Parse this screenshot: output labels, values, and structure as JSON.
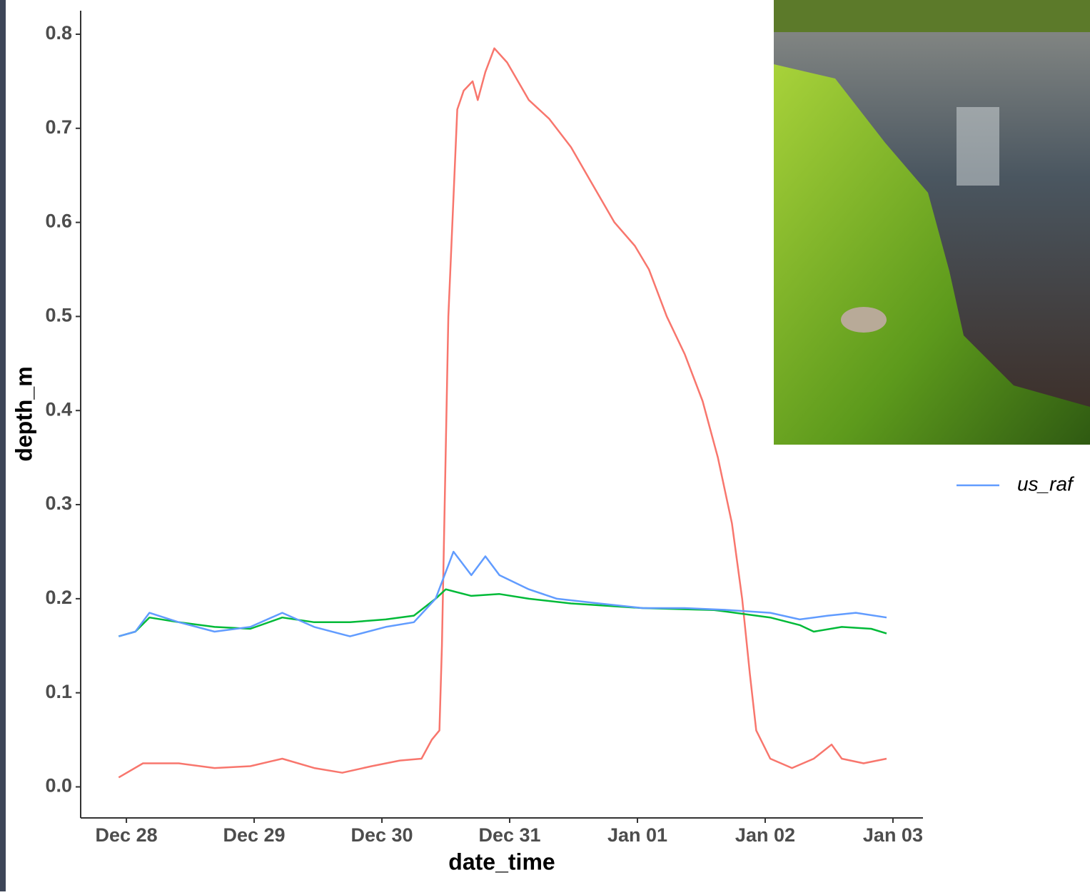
{
  "chart_data": {
    "type": "line",
    "x_label": "date_time",
    "y_label": "depth_m",
    "xlim": [
      -0.358,
      6.235
    ],
    "ylim": [
      -0.033,
      0.825
    ],
    "xticks": [
      {
        "value": 0,
        "label": "Dec 28"
      },
      {
        "value": 1,
        "label": "Dec 29"
      },
      {
        "value": 2,
        "label": "Dec 30"
      },
      {
        "value": 3,
        "label": "Dec 31"
      },
      {
        "value": 4,
        "label": "Jan 01"
      },
      {
        "value": 5,
        "label": "Jan 02"
      },
      {
        "value": 6,
        "label": "Jan 03"
      }
    ],
    "yticks": [
      {
        "value": 0,
        "label": "0.0"
      },
      0.1,
      0.2,
      0.3,
      0.4,
      0.5,
      0.6,
      0.7,
      0.8
    ],
    "grid": false,
    "series": [
      {
        "color": "#F8766D",
        "x": [
          -0.06,
          0.13,
          0.41,
          0.69,
          0.97,
          1.22,
          1.47,
          1.69,
          1.92,
          2.14,
          2.31,
          2.39,
          2.45,
          2.47,
          2.52,
          2.59,
          2.64,
          2.71,
          2.75,
          2.81,
          2.88,
          2.98,
          3.15,
          3.31,
          3.48,
          3.65,
          3.82,
          3.98,
          4.09,
          4.23,
          4.37,
          4.51,
          4.63,
          4.74,
          4.82,
          4.88,
          4.93,
          5.04,
          5.21,
          5.38,
          5.52,
          5.6,
          5.77,
          5.95
        ],
        "values": [
          0.01,
          0.025,
          0.025,
          0.02,
          0.022,
          0.03,
          0.02,
          0.015,
          0.022,
          0.028,
          0.03,
          0.05,
          0.06,
          0.15,
          0.5,
          0.72,
          0.74,
          0.75,
          0.73,
          0.76,
          0.785,
          0.77,
          0.73,
          0.71,
          0.68,
          0.64,
          0.6,
          0.575,
          0.55,
          0.5,
          0.46,
          0.41,
          0.35,
          0.28,
          0.2,
          0.12,
          0.06,
          0.03,
          0.02,
          0.03,
          0.045,
          0.03,
          0.025,
          0.03
        ]
      },
      {
        "color": "#00BA38",
        "x": [
          -0.06,
          0.07,
          0.18,
          0.41,
          0.69,
          0.97,
          1.22,
          1.47,
          1.75,
          2.03,
          2.25,
          2.42,
          2.5,
          2.7,
          2.92,
          3.15,
          3.48,
          4.04,
          4.6,
          5.04,
          5.27,
          5.38,
          5.6,
          5.83,
          5.95
        ],
        "values": [
          0.16,
          0.165,
          0.18,
          0.175,
          0.17,
          0.168,
          0.18,
          0.175,
          0.175,
          0.178,
          0.182,
          0.2,
          0.21,
          0.203,
          0.205,
          0.2,
          0.195,
          0.19,
          0.188,
          0.18,
          0.172,
          0.165,
          0.17,
          0.168,
          0.163
        ]
      },
      {
        "name": "us_raf",
        "color": "#619CFF",
        "x": [
          -0.06,
          0.07,
          0.18,
          0.41,
          0.69,
          0.97,
          1.22,
          1.47,
          1.75,
          2.03,
          2.25,
          2.42,
          2.56,
          2.7,
          2.81,
          2.92,
          3.15,
          3.37,
          3.7,
          4.04,
          4.37,
          4.71,
          5.04,
          5.27,
          5.49,
          5.71,
          5.95
        ],
        "values": [
          0.16,
          0.165,
          0.185,
          0.175,
          0.165,
          0.17,
          0.185,
          0.17,
          0.16,
          0.17,
          0.175,
          0.2,
          0.25,
          0.225,
          0.245,
          0.225,
          0.21,
          0.2,
          0.195,
          0.19,
          0.19,
          0.188,
          0.185,
          0.178,
          0.182,
          0.185,
          0.18
        ]
      }
    ]
  }
}
